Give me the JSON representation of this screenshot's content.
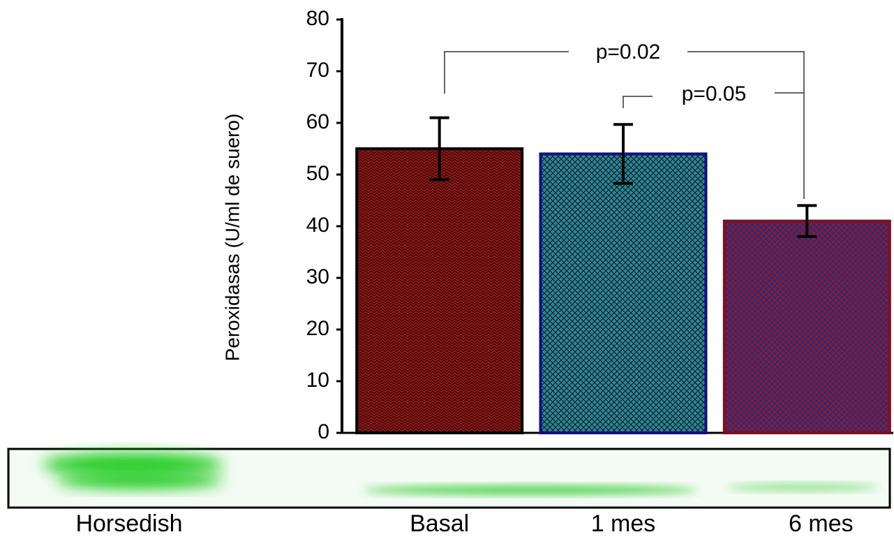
{
  "chart_data": {
    "type": "bar",
    "ylabel": "Peroxidasas (U/ml de suero)",
    "categories": [
      "Basal",
      "1 mes",
      "6 mes"
    ],
    "values": [
      55,
      54,
      41
    ],
    "errors": [
      6,
      5.7,
      3
    ],
    "colors": [
      "#8b1a1a",
      "#2a8a8a",
      "#2a2a80"
    ],
    "edge_colors": [
      "#000000",
      "#101080",
      "#7a1020"
    ],
    "ylim": [
      0,
      80
    ],
    "yticks": [
      0,
      10,
      20,
      30,
      40,
      50,
      60,
      70,
      80
    ],
    "annotations": [
      "p=0.02",
      "p=0.05"
    ],
    "reference_lane_label": "Horsedish"
  }
}
